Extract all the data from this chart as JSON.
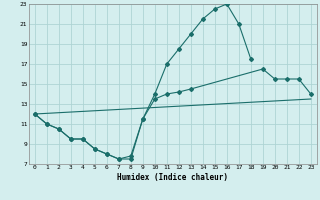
{
  "xlabel": "Humidex (Indice chaleur)",
  "bg_color": "#d4eeee",
  "grid_color": "#aed4d4",
  "line_color": "#1a6e6a",
  "xlim": [
    -0.5,
    23.5
  ],
  "ylim": [
    7,
    23
  ],
  "xticks": [
    0,
    1,
    2,
    3,
    4,
    5,
    6,
    7,
    8,
    9,
    10,
    11,
    12,
    13,
    14,
    15,
    16,
    17,
    18,
    19,
    20,
    21,
    22,
    23
  ],
  "yticks": [
    7,
    9,
    11,
    13,
    15,
    17,
    19,
    21,
    23
  ],
  "line1_x": [
    0,
    1,
    2,
    3,
    4,
    5,
    6,
    7,
    8,
    9,
    10,
    11,
    12,
    13,
    14,
    15,
    16,
    17,
    18
  ],
  "line1_y": [
    12.0,
    11.0,
    10.5,
    9.5,
    9.5,
    8.5,
    8.0,
    7.5,
    7.5,
    11.5,
    14.0,
    17.0,
    18.5,
    20.0,
    21.5,
    22.5,
    23.0,
    21.0,
    17.5
  ],
  "line2_x": [
    0,
    1,
    2,
    3,
    4,
    5,
    6,
    7,
    8,
    9,
    10,
    11,
    12,
    13,
    19,
    20,
    21,
    22,
    23
  ],
  "line2_y": [
    12.0,
    11.0,
    10.5,
    9.5,
    9.5,
    8.5,
    8.0,
    7.5,
    7.8,
    11.5,
    13.5,
    14.0,
    14.2,
    14.5,
    16.5,
    15.5,
    15.5,
    15.5,
    14.0
  ],
  "line3_x": [
    0,
    23
  ],
  "line3_y": [
    12.0,
    13.5
  ],
  "marker": "D",
  "markersize": 2.0,
  "linewidth": 0.8
}
